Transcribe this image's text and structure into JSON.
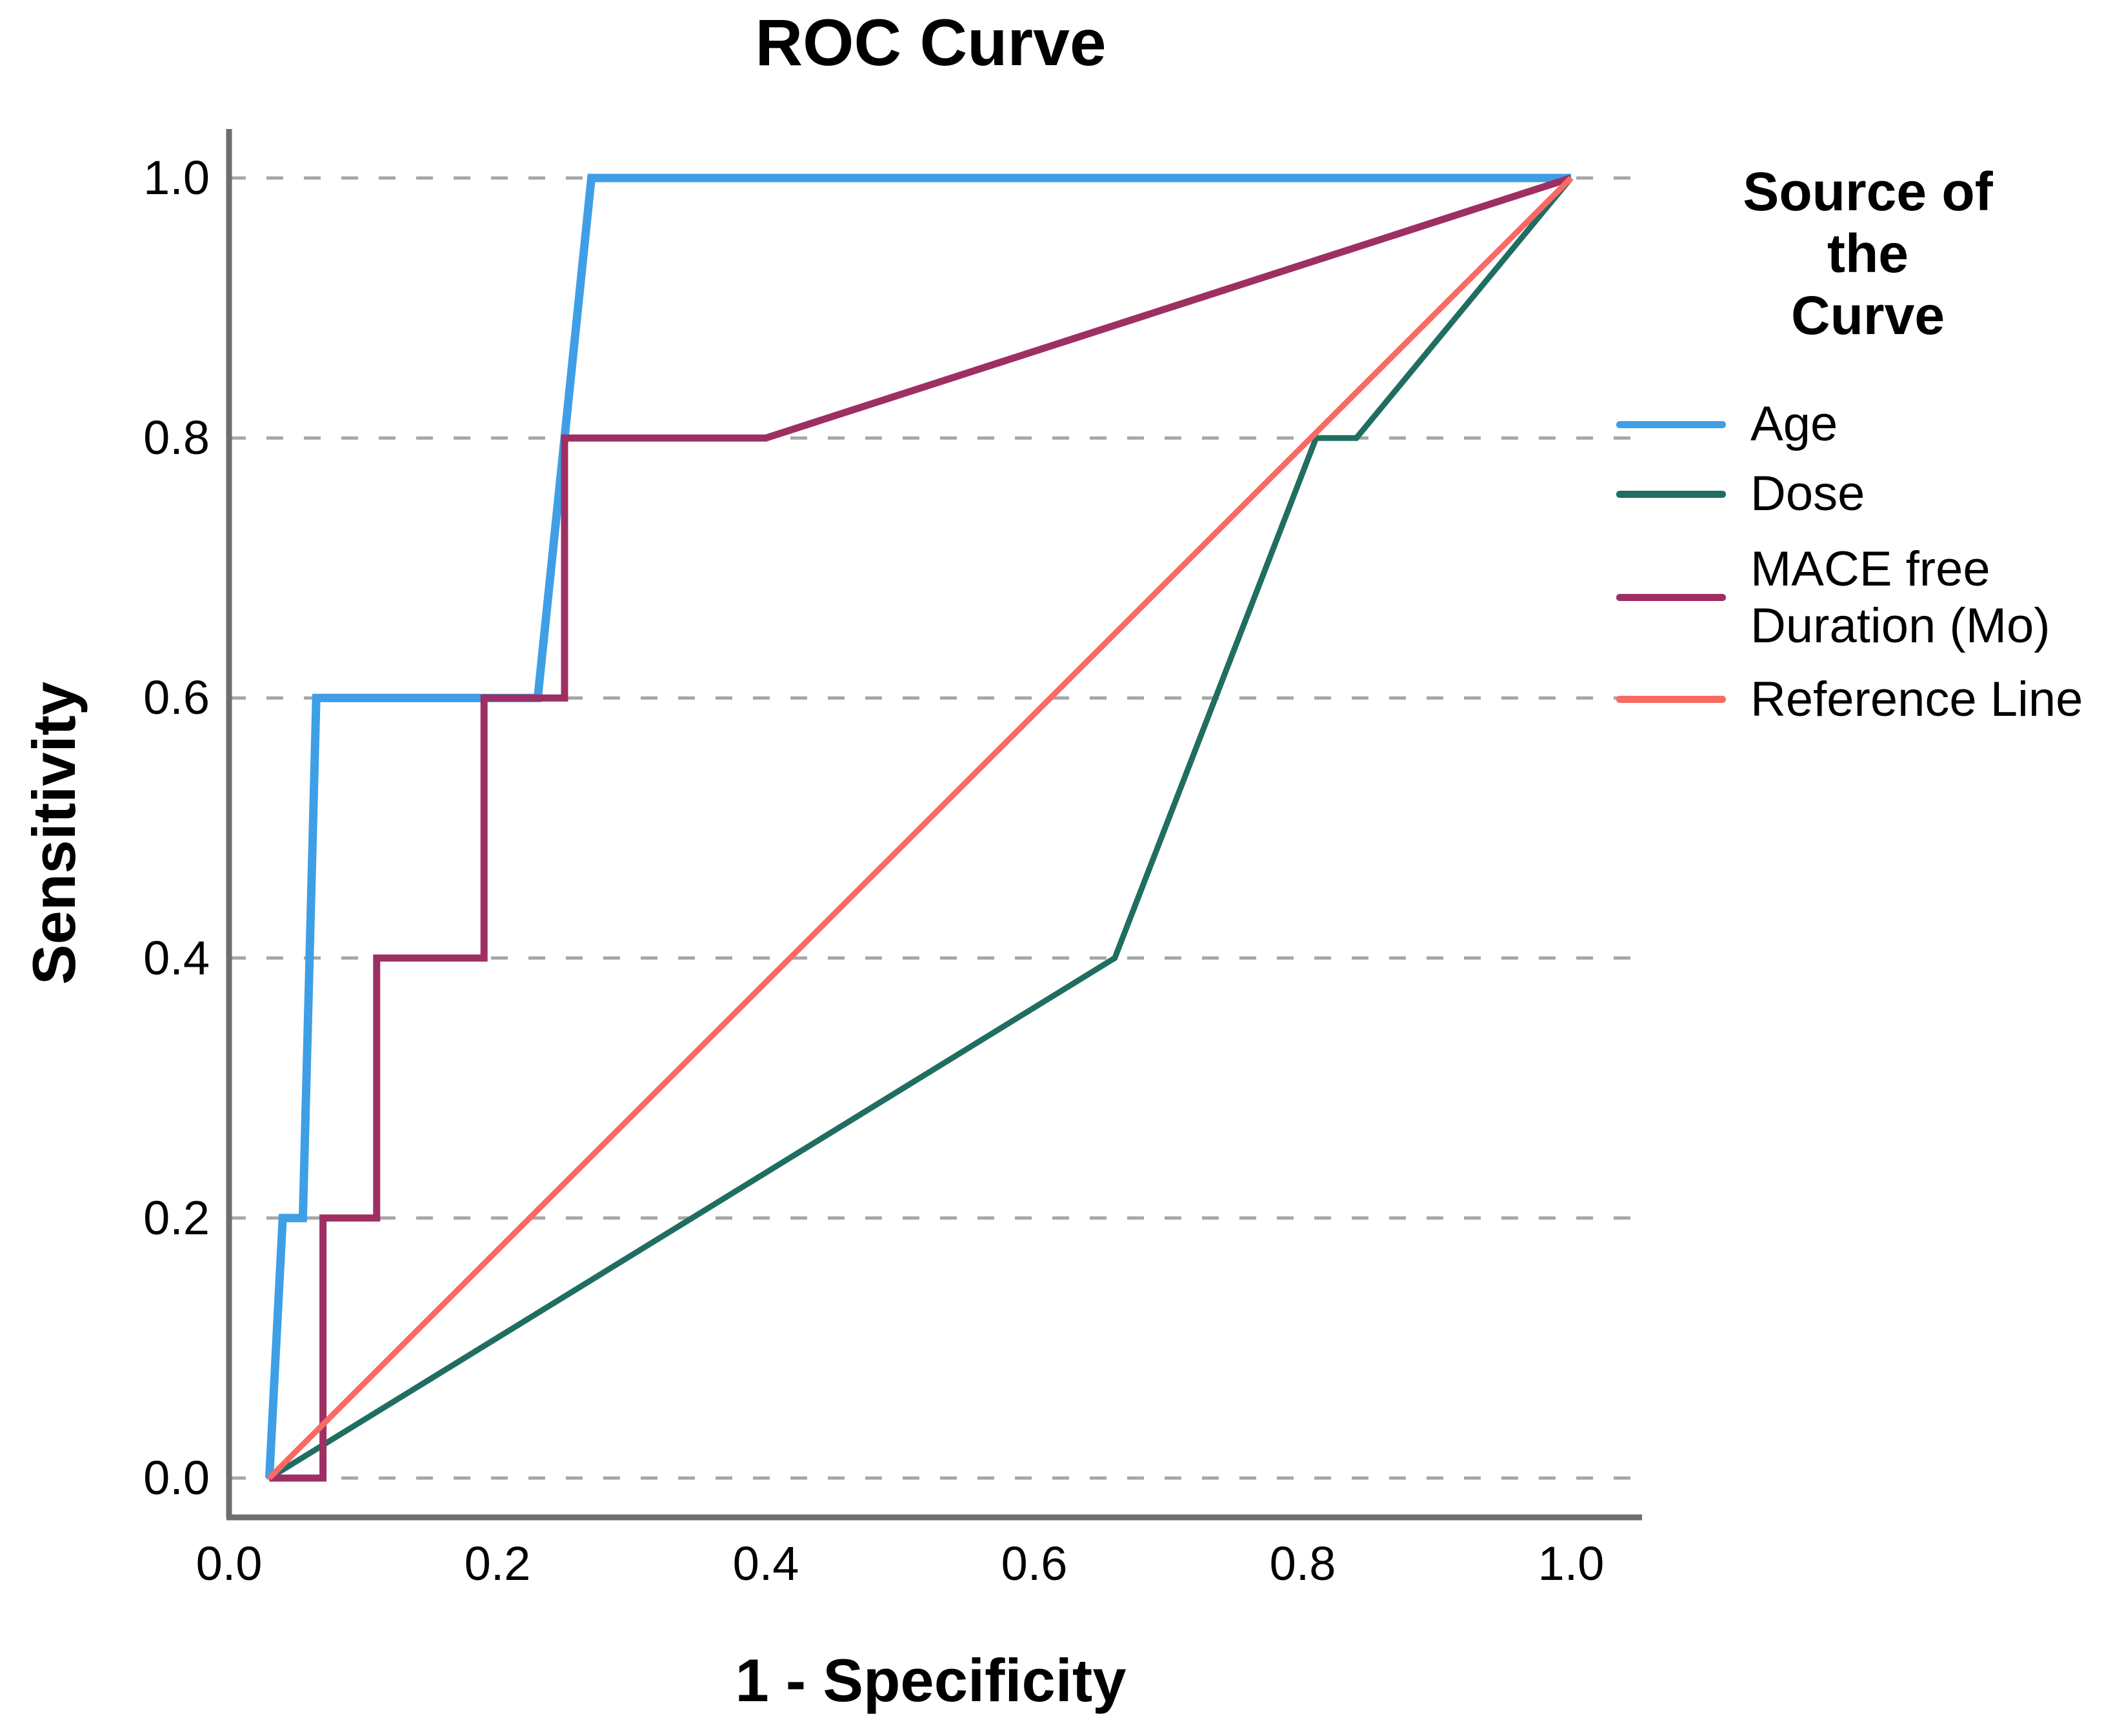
{
  "title": "ROC Curve",
  "axes": {
    "x_label": "1 - Specificity",
    "y_label": "Sensitivity",
    "x_ticks": [
      "0.0",
      "0.2",
      "0.4",
      "0.6",
      "0.8",
      "1.0"
    ],
    "y_ticks": [
      "0.0",
      "0.2",
      "0.4",
      "0.6",
      "0.8",
      "1.0"
    ]
  },
  "legend": {
    "title_line1": "Source of the",
    "title_line2": "Curve",
    "items": [
      {
        "id": "age",
        "lines": [
          "Age"
        ],
        "color": "#3E9FE6"
      },
      {
        "id": "dose",
        "lines": [
          "Dose"
        ],
        "color": "#206E62"
      },
      {
        "id": "mace",
        "lines": [
          "MACE free",
          "Duration (Mo)"
        ],
        "color": "#9E2F63"
      },
      {
        "id": "reference",
        "lines": [
          "Reference Line"
        ],
        "color": "#FA6A64"
      }
    ]
  },
  "colors": {
    "gridline": "#A6A6A6",
    "spine": "#6E6E6E",
    "background": "#FFFFFF"
  },
  "chart_data": {
    "type": "line",
    "title": "ROC Curve",
    "xlabel": "1 - Specificity",
    "ylabel": "Sensitivity",
    "xlim": [
      0,
      1
    ],
    "ylim": [
      0,
      1
    ],
    "x_tick_values": [
      0.0,
      0.2,
      0.4,
      0.6,
      0.8,
      1.0
    ],
    "y_tick_values": [
      0.0,
      0.2,
      0.4,
      0.6,
      0.8,
      1.0
    ],
    "grid": "horizontal-dashed",
    "legend_position": "right",
    "series": [
      {
        "name": "Age",
        "color": "#3E9FE6",
        "stroke_width": 13,
        "points": [
          [
            0.03,
            0.0
          ],
          [
            0.04,
            0.2
          ],
          [
            0.055,
            0.2
          ],
          [
            0.065,
            0.6
          ],
          [
            0.23,
            0.6
          ],
          [
            0.27,
            1.0
          ],
          [
            1.0,
            1.0
          ]
        ]
      },
      {
        "name": "Dose",
        "color": "#206E62",
        "stroke_width": 9,
        "points": [
          [
            0.03,
            0.0
          ],
          [
            0.66,
            0.4
          ],
          [
            0.81,
            0.8
          ],
          [
            0.84,
            0.8
          ],
          [
            1.0,
            1.0
          ]
        ]
      },
      {
        "name": "MACE free Duration (Mo)",
        "color": "#9E2F63",
        "stroke_width": 11,
        "points": [
          [
            0.03,
            0.0
          ],
          [
            0.07,
            0.0
          ],
          [
            0.07,
            0.2
          ],
          [
            0.11,
            0.2
          ],
          [
            0.11,
            0.4
          ],
          [
            0.19,
            0.4
          ],
          [
            0.19,
            0.6
          ],
          [
            0.25,
            0.6
          ],
          [
            0.25,
            0.8
          ],
          [
            0.4,
            0.8
          ],
          [
            1.0,
            1.0
          ]
        ]
      },
      {
        "name": "Reference Line",
        "color": "#FA6A64",
        "stroke_width": 9,
        "points": [
          [
            0.03,
            0.0
          ],
          [
            1.0,
            1.0
          ]
        ]
      }
    ]
  }
}
